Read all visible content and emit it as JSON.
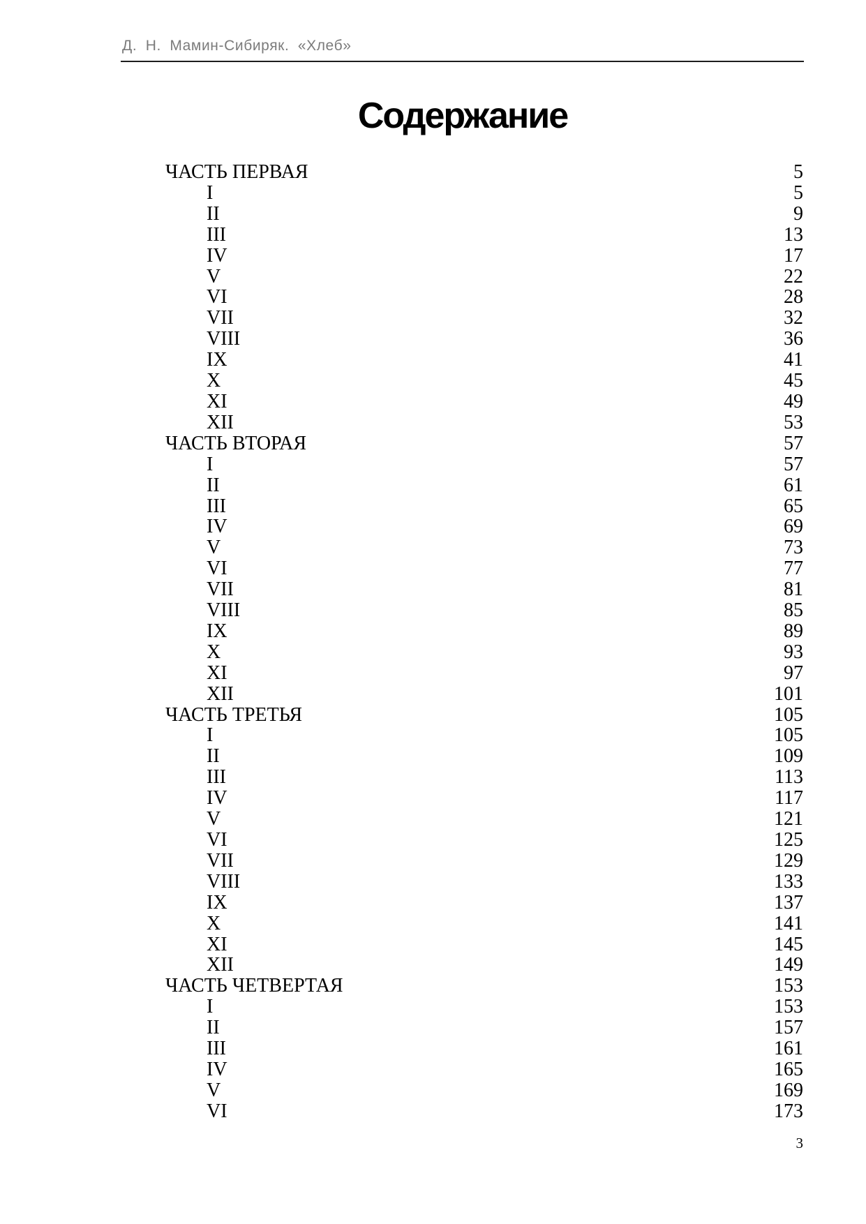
{
  "header": {
    "running_title": "Д. Н. Мамин-Сибиряк. «Хлеб»"
  },
  "title": "Содержание",
  "toc": {
    "parts": [
      {
        "label": "ЧАСТЬ ПЕРВАЯ",
        "page": "5",
        "chapters": [
          {
            "numeral": "I",
            "page": "5"
          },
          {
            "numeral": "II",
            "page": "9"
          },
          {
            "numeral": "III",
            "page": "13"
          },
          {
            "numeral": "IV",
            "page": "17"
          },
          {
            "numeral": "V",
            "page": "22"
          },
          {
            "numeral": "VI",
            "page": "28"
          },
          {
            "numeral": "VII",
            "page": "32"
          },
          {
            "numeral": "VIII",
            "page": "36"
          },
          {
            "numeral": "IX",
            "page": "41"
          },
          {
            "numeral": "X",
            "page": "45"
          },
          {
            "numeral": "XI",
            "page": "49"
          },
          {
            "numeral": "XII",
            "page": "53"
          }
        ]
      },
      {
        "label": "ЧАСТЬ ВТОРАЯ",
        "page": "57",
        "chapters": [
          {
            "numeral": "I",
            "page": "57"
          },
          {
            "numeral": "II",
            "page": "61"
          },
          {
            "numeral": "III",
            "page": "65"
          },
          {
            "numeral": "IV",
            "page": "69"
          },
          {
            "numeral": "V",
            "page": "73"
          },
          {
            "numeral": "VI",
            "page": "77"
          },
          {
            "numeral": "VII",
            "page": "81"
          },
          {
            "numeral": "VIII",
            "page": "85"
          },
          {
            "numeral": "IX",
            "page": "89"
          },
          {
            "numeral": "X",
            "page": "93"
          },
          {
            "numeral": "XI",
            "page": "97"
          },
          {
            "numeral": "XII",
            "page": "101"
          }
        ]
      },
      {
        "label": "ЧАСТЬ ТРЕТЬЯ",
        "page": "105",
        "chapters": [
          {
            "numeral": "I",
            "page": "105"
          },
          {
            "numeral": "II",
            "page": "109"
          },
          {
            "numeral": "III",
            "page": "113"
          },
          {
            "numeral": "IV",
            "page": "117"
          },
          {
            "numeral": "V",
            "page": "121"
          },
          {
            "numeral": "VI",
            "page": "125"
          },
          {
            "numeral": "VII",
            "page": "129"
          },
          {
            "numeral": "VIII",
            "page": "133"
          },
          {
            "numeral": "IX",
            "page": "137"
          },
          {
            "numeral": "X",
            "page": "141"
          },
          {
            "numeral": "XI",
            "page": "145"
          },
          {
            "numeral": "XII",
            "page": "149"
          }
        ]
      },
      {
        "label": "ЧАСТЬ ЧЕТВЕРТАЯ",
        "page": "153",
        "chapters": [
          {
            "numeral": "I",
            "page": "153"
          },
          {
            "numeral": "II",
            "page": "157"
          },
          {
            "numeral": "III",
            "page": "161"
          },
          {
            "numeral": "IV",
            "page": "165"
          },
          {
            "numeral": "V",
            "page": "169"
          },
          {
            "numeral": "VI",
            "page": "173"
          }
        ]
      }
    ]
  },
  "folio": "3"
}
